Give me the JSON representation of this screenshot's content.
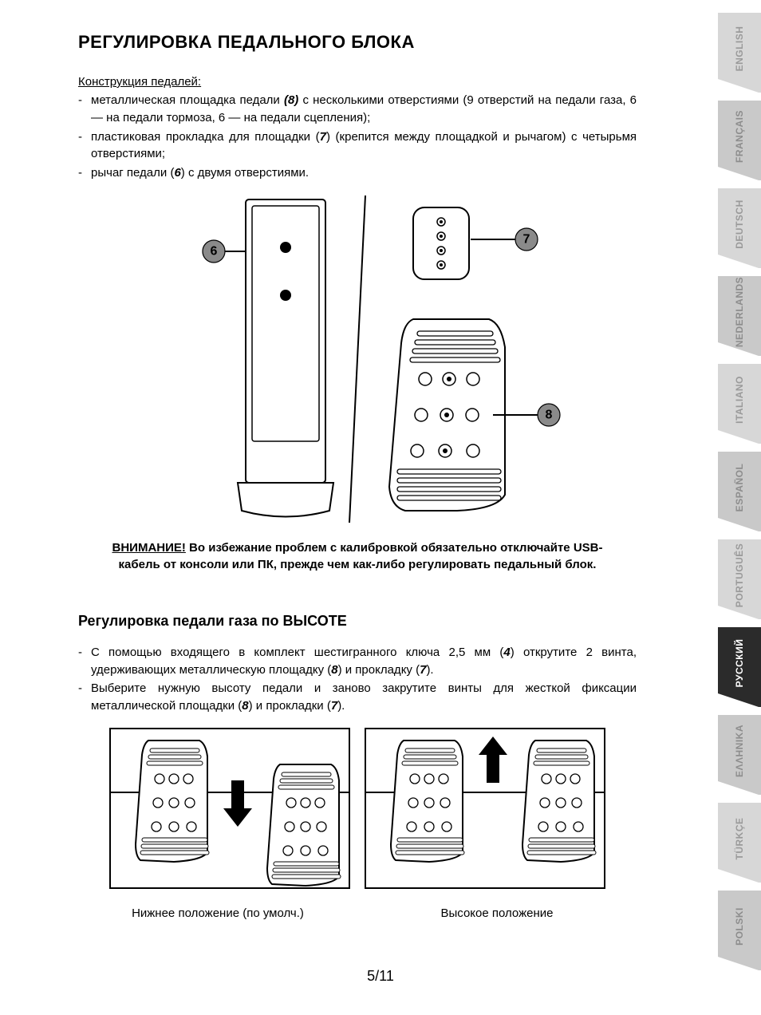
{
  "title": "РЕГУЛИРОВКА ПЕДАЛЬНОГО БЛОКА",
  "subheading": "Конструкция педалей:",
  "bullets1": {
    "a_pre": "металлическая площадка педали ",
    "a_ref": "(8)",
    "a_post": " с несколькими отверстиями (9 отверстий на педали газа, 6 — на педали тормоза, 6 — на педали сцепления);",
    "b_pre": "пластиковая прокладка для площадки (",
    "b_ref": "7",
    "b_post": ") (крепится между площадкой и рычагом) с четырьмя отверстиями;",
    "c_pre": "рычаг педали (",
    "c_ref": "6",
    "c_post": ") с двумя отверстиями."
  },
  "warning": {
    "label": "ВНИМАНИЕ!",
    "text1": "  Во избежание проблем с калибровкой обязательно отключайте USB-",
    "text2": "кабель от консоли или ПК, прежде чем как-либо регулировать педальный блок."
  },
  "section2_title": "Регулировка педали газа по ВЫСОТЕ",
  "bullets2": {
    "a_pre": "С помощью входящего в комплект шестигранного ключа 2,5 мм (",
    "a_r1": "4",
    "a_mid": ") открутите 2 винта, удерживающих металлическую площадку (",
    "a_r2": "8",
    "a_mid2": ") и прокладку (",
    "a_r3": "7",
    "a_post": ").",
    "b_pre": "Выберите нужную высоту педали и заново закрутите винты для жесткой фиксации металлической площадки (",
    "b_r1": "8",
    "b_mid": ") и прокладки (",
    "b_r2": "7",
    "b_post": ")."
  },
  "captions": {
    "low": "Нижнее положение (по умолч.)",
    "high": "Высокое положение"
  },
  "page_number": "5/11",
  "callouts": {
    "c6": "6",
    "c7": "7",
    "c8": "8"
  },
  "languages": [
    {
      "label": "ENGLISH",
      "bg": "#d7d7d7",
      "fg": "#9a9a9a"
    },
    {
      "label": "FRANÇAIS",
      "bg": "#c9c9c9",
      "fg": "#8d8d8d"
    },
    {
      "label": "DEUTSCH",
      "bg": "#d7d7d7",
      "fg": "#9a9a9a"
    },
    {
      "label": "NEDERLANDS",
      "bg": "#c9c9c9",
      "fg": "#8d8d8d"
    },
    {
      "label": "ITALIANO",
      "bg": "#d7d7d7",
      "fg": "#9a9a9a"
    },
    {
      "label": "ESPAÑOL",
      "bg": "#c9c9c9",
      "fg": "#8d8d8d"
    },
    {
      "label": "PORTUGUÊS",
      "bg": "#d7d7d7",
      "fg": "#9a9a9a"
    },
    {
      "label": "РУССКИЙ",
      "bg": "#2b2b2b",
      "fg": "#ffffff"
    },
    {
      "label": "ΕΛΛΗΝΙΚΑ",
      "bg": "#c9c9c9",
      "fg": "#8d8d8d"
    },
    {
      "label": "TÜRKÇE",
      "bg": "#d7d7d7",
      "fg": "#9a9a9a"
    },
    {
      "label": "POLSKI",
      "bg": "#c9c9c9",
      "fg": "#8d8d8d"
    }
  ],
  "colors": {
    "diagram_stroke": "#000000",
    "diagram_fill": "#ffffff",
    "callout_fill": "#8a8a8a"
  }
}
